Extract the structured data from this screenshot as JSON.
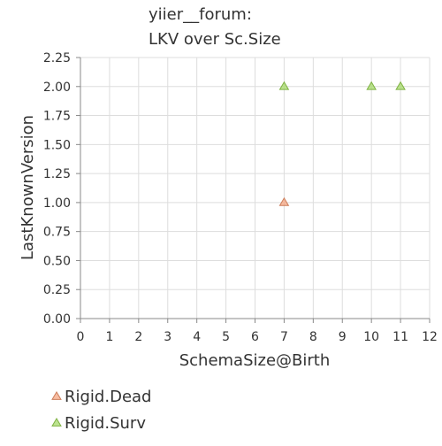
{
  "chart_data": {
    "type": "scatter",
    "title": [
      "yiier__forum:",
      "LKV over Sc.Size"
    ],
    "xlabel": "SchemaSize@Birth",
    "ylabel": "LastKnownVersion",
    "xlim": [
      0,
      12
    ],
    "ylim": [
      0,
      2.25
    ],
    "xticks": [
      "0",
      "1",
      "2",
      "3",
      "4",
      "5",
      "6",
      "7",
      "8",
      "9",
      "10",
      "11",
      "12"
    ],
    "yticks": [
      "0.00",
      "0.25",
      "0.50",
      "0.75",
      "1.00",
      "1.25",
      "1.50",
      "1.75",
      "2.00",
      "2.25"
    ],
    "grid": "vertical-and-horizontal",
    "legend": "bottom-left",
    "series": [
      {
        "name": "Rigid.Dead",
        "marker": "triangle",
        "color": "#f4a582",
        "points": [
          {
            "x": 7,
            "y": 1.0
          }
        ]
      },
      {
        "name": "Rigid.Surv",
        "marker": "triangle",
        "color": "#a6d96a",
        "points": [
          {
            "x": 7,
            "y": 2.0
          },
          {
            "x": 10,
            "y": 2.0
          },
          {
            "x": 11,
            "y": 2.0
          }
        ]
      }
    ]
  }
}
